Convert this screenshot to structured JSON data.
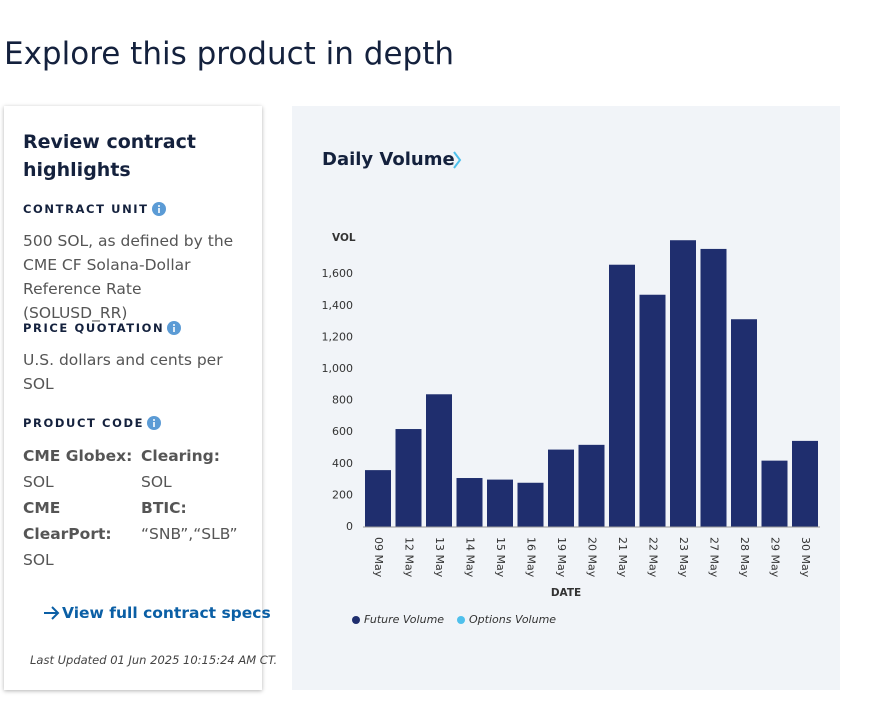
{
  "heading": "Explore this product in depth",
  "highlights": {
    "title": "Review contract highlights",
    "sections": [
      {
        "label": "CONTRACT UNIT",
        "text": "500 SOL, as defined by the CME CF Solana-Dollar Reference Rate (SOLUSD_RR)"
      },
      {
        "label": "PRICE QUOTATION",
        "text": "U.S. dollars and cents per SOL"
      },
      {
        "label": "PRODUCT CODE",
        "codes": [
          {
            "name": "CME Globex:",
            "value": "SOL"
          },
          {
            "name": "Clearing:",
            "value": "SOL"
          },
          {
            "name": "CME ClearPort:",
            "value": "SOL"
          },
          {
            "name": "BTIC:",
            "value": "“SNB”,“SLB”"
          }
        ]
      }
    ],
    "link": "View full contract specs",
    "last_updated": "Last Updated 01 Jun 2025 10:15:24 AM CT."
  },
  "chart_data": {
    "type": "bar",
    "title": "Daily Volume",
    "y_label": "VOL",
    "x_label": "DATE",
    "categories": [
      "09 May",
      "12 May",
      "13 May",
      "14 May",
      "15 May",
      "16 May",
      "19 May",
      "20 May",
      "21 May",
      "22 May",
      "23 May",
      "27 May",
      "28 May",
      "29 May",
      "30 May"
    ],
    "series": [
      {
        "name": "Future Volume",
        "color": "#1f2e6e",
        "values": [
          360,
          620,
          840,
          310,
          300,
          280,
          490,
          520,
          1660,
          1470,
          1815,
          1760,
          1315,
          420,
          545
        ]
      },
      {
        "name": "Options Volume",
        "color": "#4fc0ec",
        "values": [
          null,
          null,
          null,
          null,
          null,
          null,
          null,
          null,
          null,
          null,
          null,
          null,
          null,
          null,
          null
        ]
      }
    ],
    "ylim": [
      0,
      1850
    ],
    "yticks": [
      0,
      200,
      400,
      600,
      800,
      {
        "value": 1000,
        "label": "1,000"
      },
      {
        "value": 1200,
        "label": "1,200"
      },
      {
        "value": 1400,
        "label": "1,400"
      },
      {
        "value": 1600,
        "label": "1,600"
      }
    ],
    "grid": false,
    "legend": "bottom-left"
  }
}
